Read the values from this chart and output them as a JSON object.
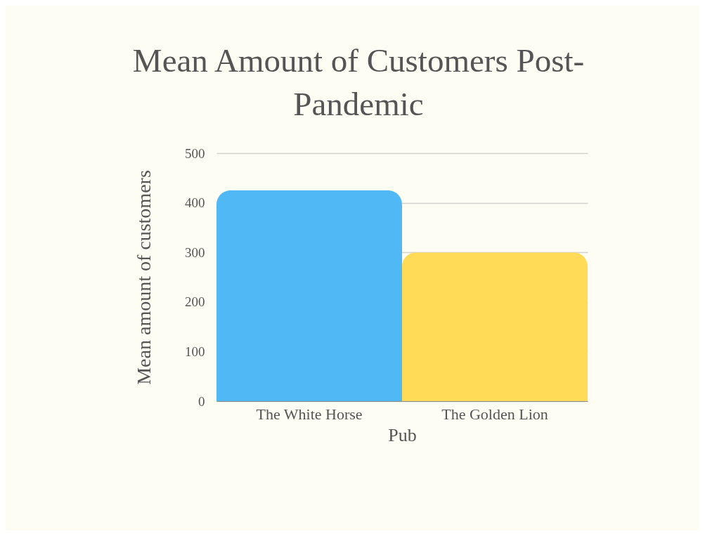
{
  "chart_data": {
    "type": "bar",
    "title": "Mean Amount of Customers Post-Pandemic",
    "xlabel": "Pub",
    "ylabel": "Mean amount of customers",
    "categories": [
      "The White Horse",
      "The Golden Lion"
    ],
    "values": [
      425,
      300
    ],
    "colors": [
      "#4fb8f5",
      "#ffdb58"
    ],
    "ylim": [
      0,
      500
    ],
    "yticks": [
      0,
      100,
      200,
      300,
      400,
      500
    ],
    "grid": "y"
  }
}
